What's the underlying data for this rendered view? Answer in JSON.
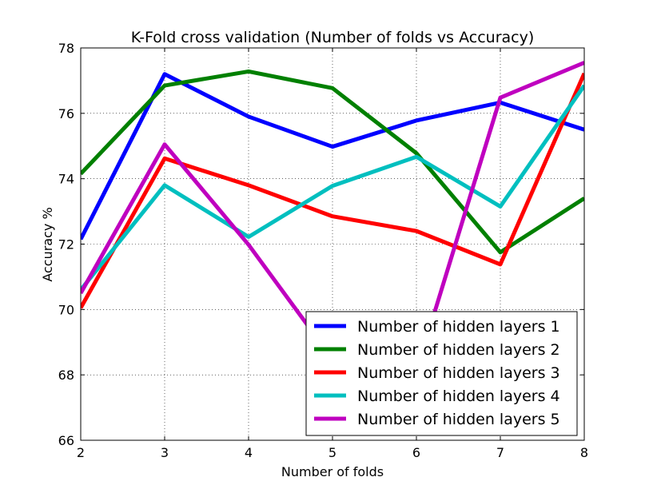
{
  "chart_data": {
    "type": "line",
    "title": "K-Fold cross validation (Number of folds vs Accuracy)",
    "xlabel": "Number of folds",
    "ylabel": "Accuracy %",
    "x": [
      2,
      3,
      4,
      5,
      6,
      7,
      8
    ],
    "xlim": [
      2,
      8
    ],
    "ylim": [
      66,
      78
    ],
    "xticks": [
      "2",
      "3",
      "4",
      "5",
      "6",
      "7",
      "8"
    ],
    "yticks": [
      "66",
      "68",
      "70",
      "72",
      "74",
      "76",
      "78"
    ],
    "grid": true,
    "legend_position": "lower-right",
    "series": [
      {
        "name": "Number of hidden layers 1",
        "color": "#0000ff",
        "values": [
          72.15,
          77.2,
          75.9,
          74.98,
          75.78,
          76.33,
          75.5
        ]
      },
      {
        "name": "Number of hidden layers 2",
        "color": "#008000",
        "values": [
          74.15,
          76.85,
          77.28,
          76.77,
          74.78,
          71.75,
          73.4
        ]
      },
      {
        "name": "Number of hidden layers 3",
        "color": "#ff0000",
        "values": [
          70.05,
          74.62,
          73.8,
          72.85,
          72.4,
          71.38,
          77.22
        ]
      },
      {
        "name": "Number of hidden layers 4",
        "color": "#00bfbf",
        "values": [
          70.6,
          73.8,
          72.22,
          73.78,
          74.67,
          73.15,
          76.85
        ]
      },
      {
        "name": "Number of hidden layers 5",
        "color": "#bf00bf",
        "values": [
          70.5,
          75.05,
          71.98,
          68.48,
          68.1,
          76.48,
          77.55
        ]
      }
    ]
  }
}
